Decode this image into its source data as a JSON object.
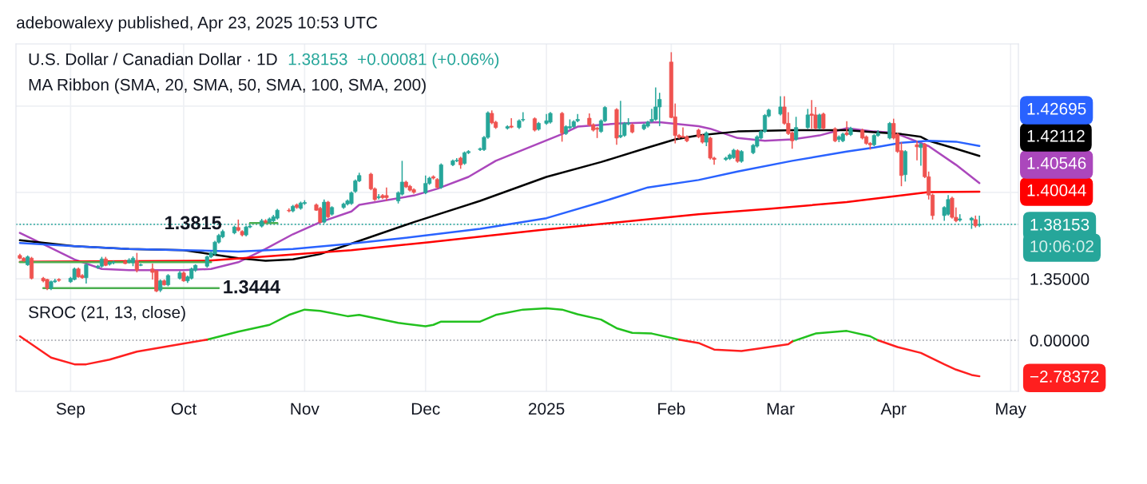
{
  "chart_data": [
    {
      "type": "candlestick",
      "title": "U.S. Dollar / Canadian Dollar · 1D",
      "subtitle": "MA Ribbon (SMA, 20, SMA, 50, SMA, 100, SMA, 200)",
      "x": [
        "2024-08-20",
        "2024-08-21",
        "2024-08-22",
        "2024-08-23",
        "2024-08-26",
        "2024-08-27",
        "2024-08-28",
        "2024-08-29",
        "2024-08-30",
        "2024-09-02",
        "2024-09-03",
        "2024-09-04",
        "2024-09-05",
        "2024-09-06",
        "2024-09-09",
        "2024-09-10",
        "2024-09-11",
        "2024-09-12",
        "2024-09-13",
        "2024-09-16",
        "2024-09-17",
        "2024-09-18",
        "2024-09-19",
        "2024-09-20",
        "2024-09-23",
        "2024-09-24",
        "2024-09-25",
        "2024-09-26",
        "2024-09-27",
        "2024-09-30",
        "2024-10-01",
        "2024-10-02",
        "2024-10-03",
        "2024-10-04",
        "2024-10-07",
        "2024-10-08",
        "2024-10-09",
        "2024-10-10",
        "2024-10-11",
        "2024-10-14",
        "2024-10-15",
        "2024-10-16",
        "2024-10-17",
        "2024-10-18",
        "2024-10-21",
        "2024-10-22",
        "2024-10-23",
        "2024-10-24",
        "2024-10-25",
        "2024-10-28",
        "2024-10-29",
        "2024-10-30",
        "2024-10-31",
        "2024-11-01",
        "2024-11-04",
        "2024-11-05",
        "2024-11-06",
        "2024-11-07",
        "2024-11-08",
        "2024-11-11",
        "2024-11-12",
        "2024-11-13",
        "2024-11-14",
        "2024-11-15",
        "2024-11-18",
        "2024-11-19",
        "2024-11-20",
        "2024-11-21",
        "2024-11-22",
        "2024-11-25",
        "2024-11-26",
        "2024-11-27",
        "2024-11-28",
        "2024-11-29",
        "2024-12-02",
        "2024-12-03",
        "2024-12-04",
        "2024-12-05",
        "2024-12-06",
        "2024-12-09",
        "2024-12-10",
        "2024-12-11",
        "2024-12-12",
        "2024-12-13",
        "2024-12-16",
        "2024-12-17",
        "2024-12-18",
        "2024-12-19",
        "2024-12-20",
        "2024-12-23",
        "2024-12-24",
        "2024-12-26",
        "2024-12-27",
        "2024-12-30",
        "2024-12-31",
        "2025-01-02",
        "2025-01-03",
        "2025-01-06",
        "2025-01-07",
        "2025-01-08",
        "2025-01-09",
        "2025-01-10",
        "2025-01-13",
        "2025-01-14",
        "2025-01-15",
        "2025-01-16",
        "2025-01-17",
        "2025-01-20",
        "2025-01-21",
        "2025-01-22",
        "2025-01-23",
        "2025-01-24",
        "2025-01-27",
        "2025-01-28",
        "2025-01-29",
        "2025-01-30",
        "2025-01-31",
        "2025-02-03",
        "2025-02-04",
        "2025-02-05",
        "2025-02-06",
        "2025-02-07",
        "2025-02-10",
        "2025-02-11",
        "2025-02-12",
        "2025-02-13",
        "2025-02-14",
        "2025-02-17",
        "2025-02-18",
        "2025-02-19",
        "2025-02-20",
        "2025-02-21",
        "2025-02-24",
        "2025-02-25",
        "2025-02-26",
        "2025-02-27",
        "2025-02-28",
        "2025-03-03",
        "2025-03-04",
        "2025-03-05",
        "2025-03-06",
        "2025-03-07",
        "2025-03-10",
        "2025-03-11",
        "2025-03-12",
        "2025-03-13",
        "2025-03-14",
        "2025-03-17",
        "2025-03-18",
        "2025-03-19",
        "2025-03-20",
        "2025-03-21",
        "2025-03-24",
        "2025-03-25",
        "2025-03-26",
        "2025-03-27",
        "2025-03-28",
        "2025-03-31",
        "2025-04-01",
        "2025-04-02",
        "2025-04-03",
        "2025-04-04",
        "2025-04-07",
        "2025-04-08",
        "2025-04-09",
        "2025-04-10",
        "2025-04-11",
        "2025-04-14",
        "2025-04-15",
        "2025-04-16",
        "2025-04-17",
        "2025-04-18",
        "2025-04-21",
        "2025-04-22",
        "2025-04-23"
      ],
      "ohlc": [
        [
          1.3635,
          1.3645,
          1.3612,
          1.3619
        ],
        [
          1.3619,
          1.3625,
          1.3598,
          1.3604
        ],
        [
          1.3581,
          1.3635,
          1.3575,
          1.3627
        ],
        [
          1.3619,
          1.3627,
          1.3496,
          1.3503
        ],
        [
          1.3503,
          1.3511,
          1.348,
          1.3488
        ],
        [
          1.3496,
          1.35,
          1.3434,
          1.3445
        ],
        [
          1.3445,
          1.349,
          1.3434,
          1.3483
        ],
        [
          1.3483,
          1.35,
          1.3476,
          1.3488
        ],
        [
          1.3496,
          1.3503,
          1.3483,
          1.3491
        ],
        [
          1.3483,
          1.3511,
          1.3476,
          1.3503
        ],
        [
          1.3496,
          1.3565,
          1.3491,
          1.3557
        ],
        [
          1.3557,
          1.3565,
          1.3506,
          1.3511
        ],
        [
          1.3519,
          1.3527,
          1.35,
          1.3506
        ],
        [
          1.3506,
          1.3588,
          1.3472,
          1.3581
        ],
        [
          1.3565,
          1.3581,
          1.3557,
          1.3573
        ],
        [
          1.3573,
          1.3627,
          1.3565,
          1.3615
        ],
        [
          1.3615,
          1.3627,
          1.3573,
          1.3578
        ],
        [
          1.3584,
          1.3599,
          1.3576,
          1.3593
        ],
        [
          1.3593,
          1.3604,
          1.3584,
          1.3596
        ],
        [
          1.3599,
          1.3611,
          1.3584,
          1.3588
        ],
        [
          1.3596,
          1.3619,
          1.3588,
          1.3608
        ],
        [
          1.3593,
          1.363,
          1.3573,
          1.3619
        ],
        [
          1.3604,
          1.365,
          1.3537,
          1.355
        ],
        [
          1.3578,
          1.3588,
          1.3573,
          1.3581
        ],
        [
          1.3557,
          1.3588,
          1.3496,
          1.3537
        ],
        [
          1.3547,
          1.355,
          1.3423,
          1.3429
        ],
        [
          1.3434,
          1.3496,
          1.3423,
          1.3488
        ],
        [
          1.3488,
          1.3496,
          1.346,
          1.3465
        ],
        [
          1.3465,
          1.3527,
          1.3457,
          1.3519
        ],
        [
          1.3503,
          1.3545,
          1.3496,
          1.3534
        ],
        [
          1.3534,
          1.3542,
          1.3483,
          1.3488
        ],
        [
          1.3488,
          1.3519,
          1.3476,
          1.3511
        ],
        [
          1.3503,
          1.3565,
          1.3496,
          1.3557
        ],
        [
          1.355,
          1.3584,
          1.354,
          1.3578
        ],
        [
          1.3573,
          1.3635,
          1.3565,
          1.3627
        ],
        [
          1.3627,
          1.366,
          1.3619,
          1.365
        ],
        [
          1.3643,
          1.372,
          1.3635,
          1.3712
        ],
        [
          1.3712,
          1.376,
          1.3704,
          1.3751
        ],
        [
          1.3743,
          1.3785,
          1.3735,
          1.3774
        ],
        [
          1.3766,
          1.3808,
          1.3758,
          1.38
        ],
        [
          1.3797,
          1.3843,
          1.3774,
          1.3781
        ],
        [
          1.3774,
          1.3781,
          1.3745,
          1.3754
        ],
        [
          1.3754,
          1.3808,
          1.3745,
          1.38
        ],
        [
          1.38,
          1.3815,
          1.3793,
          1.3805
        ],
        [
          1.3805,
          1.3847,
          1.3797,
          1.3836
        ],
        [
          1.3836,
          1.3845,
          1.382,
          1.3828
        ],
        [
          1.3828,
          1.3855,
          1.382,
          1.3847
        ],
        [
          1.3836,
          1.387,
          1.3828,
          1.3859
        ],
        [
          1.3851,
          1.3905,
          1.3843,
          1.3897
        ],
        [
          1.3897,
          1.3908,
          1.3885,
          1.3893
        ],
        [
          1.3893,
          1.3928,
          1.3885,
          1.392
        ],
        [
          1.3928,
          1.3936,
          1.3905,
          1.3913
        ],
        [
          1.3908,
          1.3947,
          1.39,
          1.3939
        ],
        [
          1.3936,
          1.3955,
          1.3928,
          1.3942
        ],
        [
          1.3928,
          1.3936,
          1.3893,
          1.3897
        ],
        [
          1.3908,
          1.3916,
          1.382,
          1.3828
        ],
        [
          1.3828,
          1.3959,
          1.382,
          1.3944
        ],
        [
          1.3944,
          1.3951,
          1.3851,
          1.3859
        ],
        [
          1.3874,
          1.392,
          1.3866,
          1.3913
        ],
        [
          1.3913,
          1.3941,
          1.3905,
          1.3933
        ],
        [
          1.3933,
          1.3959,
          1.3925,
          1.3951
        ],
        [
          1.3936,
          1.4006,
          1.3928,
          1.3998
        ],
        [
          1.4006,
          1.4075,
          1.3998,
          1.4067
        ],
        [
          1.4067,
          1.4114,
          1.406,
          1.4098
        ],
        [
          1.4106,
          1.4114,
          1.4013,
          1.4021
        ],
        [
          1.4021,
          1.4029,
          1.3951,
          1.3959
        ],
        [
          1.397,
          1.399,
          1.3959,
          1.3975
        ],
        [
          1.3982,
          1.399,
          1.3962,
          1.397
        ],
        [
          1.3982,
          1.4029,
          1.3951,
          1.397
        ],
        [
          1.3951,
          1.4006,
          1.3936,
          1.3998
        ],
        [
          1.399,
          1.4183,
          1.3982,
          1.406
        ],
        [
          1.406,
          1.4068,
          1.4025,
          1.4032
        ],
        [
          1.4036,
          1.4044,
          1.4005,
          1.4013
        ],
        [
          1.4016,
          1.4024,
          1.3993,
          1.4001
        ],
        [
          1.3998,
          1.4098,
          1.399,
          1.4052
        ],
        [
          1.4052,
          1.4091,
          1.4044,
          1.4083
        ],
        [
          1.4091,
          1.4099,
          1.4075,
          1.4083
        ],
        [
          1.4075,
          1.4083,
          1.4021,
          1.4029
        ],
        [
          1.4029,
          1.4168,
          1.4021,
          1.416
        ],
        [
          1.416,
          1.4191,
          1.4152,
          1.4183
        ],
        [
          1.4183,
          1.4199,
          1.4175,
          1.4186
        ],
        [
          1.4199,
          1.4207,
          1.4137,
          1.416
        ],
        [
          1.4168,
          1.4237,
          1.416,
          1.423
        ],
        [
          1.423,
          1.4245,
          1.4222,
          1.4237
        ],
        [
          1.4248,
          1.426,
          1.424,
          1.4253
        ],
        [
          1.4248,
          1.4327,
          1.424,
          1.4319
        ],
        [
          1.4319,
          1.4469,
          1.4311,
          1.4461
        ],
        [
          1.4458,
          1.4475,
          1.4395,
          1.4403
        ],
        [
          1.4407,
          1.4415,
          1.4368,
          1.4376
        ],
        [
          1.4372,
          1.4389,
          1.4364,
          1.4381
        ],
        [
          1.4384,
          1.443,
          1.4372,
          1.4378
        ],
        [
          1.4376,
          1.4423,
          1.4368,
          1.4415
        ],
        [
          1.442,
          1.4464,
          1.441,
          1.4423
        ],
        [
          1.4427,
          1.4435,
          1.4353,
          1.4361
        ],
        [
          1.4366,
          1.4408,
          1.4358,
          1.44
        ],
        [
          1.44,
          1.4454,
          1.4392,
          1.4415
        ],
        [
          1.4407,
          1.4466,
          1.4399,
          1.4458
        ],
        [
          1.4458,
          1.4466,
          1.4294,
          1.4345
        ],
        [
          1.4341,
          1.4389,
          1.4333,
          1.4381
        ],
        [
          1.4374,
          1.4423,
          1.4366,
          1.4381
        ],
        [
          1.4381,
          1.4418,
          1.4373,
          1.441
        ],
        [
          1.4415,
          1.4454,
          1.4407,
          1.4423
        ],
        [
          1.443,
          1.4458,
          1.4384,
          1.4392
        ],
        [
          1.4392,
          1.44,
          1.4353,
          1.4361
        ],
        [
          1.4372,
          1.438,
          1.4315,
          1.4366
        ],
        [
          1.4353,
          1.4423,
          1.4345,
          1.4415
        ],
        [
          1.4415,
          1.45,
          1.4407,
          1.4492
        ],
        [
          1.448,
          1.4488,
          1.4276,
          1.4315
        ],
        [
          1.4322,
          1.4531,
          1.4314,
          1.433
        ],
        [
          1.433,
          1.4408,
          1.4322,
          1.44
        ],
        [
          1.4397,
          1.443,
          1.4389,
          1.4403
        ],
        [
          1.4392,
          1.44,
          1.4342,
          1.435
        ],
        [
          1.4369,
          1.44,
          1.4361,
          1.4392
        ],
        [
          1.4384,
          1.4415,
          1.4376,
          1.4407
        ],
        [
          1.4412,
          1.4484,
          1.4404,
          1.4423
        ],
        [
          1.4423,
          1.4608,
          1.4415,
          1.4495
        ],
        [
          1.4495,
          1.4577,
          1.4384,
          1.4539
        ],
        [
          1.4755,
          1.4812,
          1.443,
          1.4434
        ],
        [
          1.4438,
          1.4515,
          1.4284,
          1.433
        ],
        [
          1.433,
          1.4338,
          1.4311,
          1.4319
        ],
        [
          1.4325,
          1.4377,
          1.4315,
          1.4319
        ],
        [
          1.4322,
          1.433,
          1.4291,
          1.4299
        ],
        [
          1.4361,
          1.4369,
          1.4314,
          1.4322
        ],
        [
          1.433,
          1.4338,
          1.4283,
          1.4291
        ],
        [
          1.4291,
          1.4353,
          1.4268,
          1.4345
        ],
        [
          1.4315,
          1.4322,
          1.4191,
          1.4199
        ],
        [
          1.4199,
          1.4207,
          1.416,
          1.4191
        ],
        [
          1.4191,
          1.4207,
          1.4183,
          1.4199
        ],
        [
          1.4196,
          1.4225,
          1.4188,
          1.4217
        ],
        [
          1.4202,
          1.4253,
          1.4194,
          1.4245
        ],
        [
          1.4242,
          1.425,
          1.4172,
          1.418
        ],
        [
          1.418,
          1.4245,
          1.4172,
          1.4237
        ],
        [
          1.423,
          1.4281,
          1.4222,
          1.4273
        ],
        [
          1.4268,
          1.433,
          1.426,
          1.4322
        ],
        [
          1.4315,
          1.4361,
          1.4307,
          1.4353
        ],
        [
          1.4353,
          1.4454,
          1.4345,
          1.4446
        ],
        [
          1.4443,
          1.4485,
          1.4435,
          1.4477
        ],
        [
          1.4454,
          1.4557,
          1.4446,
          1.4495
        ],
        [
          1.4495,
          1.4557,
          1.4392,
          1.44
        ],
        [
          1.44,
          1.4464,
          1.4333,
          1.4341
        ],
        [
          1.4345,
          1.4353,
          1.4253,
          1.4299
        ],
        [
          1.4307,
          1.4438,
          1.4299,
          1.4376
        ],
        [
          1.4376,
          1.4484,
          1.4368,
          1.4449
        ],
        [
          1.4454,
          1.4535,
          1.4369,
          1.4446
        ],
        [
          1.4449,
          1.4495,
          1.4364,
          1.4372
        ],
        [
          1.4372,
          1.4457,
          1.4364,
          1.4449
        ],
        [
          1.4454,
          1.4462,
          1.4364,
          1.4372
        ],
        [
          1.4369,
          1.4377,
          1.4291,
          1.4299
        ],
        [
          1.4307,
          1.433,
          1.4291,
          1.4322
        ],
        [
          1.4299,
          1.4346,
          1.4291,
          1.4338
        ],
        [
          1.4345,
          1.4412,
          1.4327,
          1.4335
        ],
        [
          1.4335,
          1.438,
          1.4327,
          1.4372
        ],
        [
          1.4361,
          1.4369,
          1.4307,
          1.4315
        ],
        [
          1.4322,
          1.433,
          1.4276,
          1.4284
        ],
        [
          1.4284,
          1.4292,
          1.4248,
          1.4276
        ],
        [
          1.4276,
          1.4338,
          1.4268,
          1.433
        ],
        [
          1.433,
          1.436,
          1.4322,
          1.4345
        ],
        [
          1.4315,
          1.4408,
          1.4307,
          1.44
        ],
        [
          1.44,
          1.4427,
          1.4307,
          1.4315
        ],
        [
          1.4338,
          1.4346,
          1.4229,
          1.4237
        ],
        [
          1.4242,
          1.4291,
          1.4036,
          1.4098
        ],
        [
          1.4103,
          1.4245,
          1.4063,
          1.4237
        ],
        [
          1.4276,
          1.4299,
          1.4186,
          1.4264
        ],
        [
          1.426,
          1.4287,
          1.4155,
          1.4279
        ],
        [
          1.4279,
          1.4287,
          1.4083,
          1.4091
        ],
        [
          1.4091,
          1.4121,
          1.3959,
          1.3985
        ],
        [
          1.3985,
          1.3993,
          1.3843,
          1.3866
        ],
        [
          1.3866,
          1.392,
          1.3836,
          1.3913
        ],
        [
          1.3874,
          1.3985,
          1.3866,
          1.3959
        ],
        [
          1.3967,
          1.3975,
          1.3848,
          1.3856
        ],
        [
          1.3856,
          1.3913,
          1.3828,
          1.3836
        ],
        [
          1.384,
          1.3874,
          1.3831,
          1.3847
        ],
        [
          1.384,
          1.3858,
          1.3789,
          1.3851
        ],
        [
          1.3843,
          1.3866,
          1.3797,
          1.3807
        ],
        [
          1.381,
          1.3866,
          1.38,
          1.38153
        ]
      ],
      "series": [
        {
          "type": "line",
          "color": "#ab47bc",
          "x": [
            "2024-08-20",
            "2024-08-27",
            "2024-09-03",
            "2024-09-10",
            "2024-09-17",
            "2024-09-24",
            "2024-10-01",
            "2024-10-08",
            "2024-10-15",
            "2024-10-22",
            "2024-10-29",
            "2024-11-05",
            "2024-11-13",
            "2024-11-15",
            "2024-11-29",
            "2024-12-05",
            "2024-12-13",
            "2024-12-20",
            "2025-01-06",
            "2025-01-10",
            "2025-01-21",
            "2025-01-31",
            "2025-02-10",
            "2025-02-13",
            "2025-02-20",
            "2025-02-27",
            "2025-03-06",
            "2025-03-13",
            "2025-03-20",
            "2025-03-27",
            "2025-04-01",
            "2025-04-03",
            "2025-04-10",
            "2025-04-17",
            "2025-04-23"
          ],
          "values": [
            1.3766,
            1.3689,
            1.3612,
            1.3557,
            1.355,
            1.355,
            1.355,
            1.3557,
            1.3596,
            1.3673,
            1.3758,
            1.3828,
            1.389,
            1.3928,
            1.3982,
            1.4021,
            1.409,
            1.4183,
            1.4338,
            1.4381,
            1.44,
            1.4407,
            1.4384,
            1.4369,
            1.4315,
            1.4299,
            1.4307,
            1.433,
            1.4372,
            1.4353,
            1.4345,
            1.433,
            1.4268,
            1.416,
            1.40546
          ]
        },
        {
          "type": "line",
          "color": "#000000",
          "x": [
            "2024-08-20",
            "2024-09-03",
            "2024-09-17",
            "2024-10-01",
            "2024-10-15",
            "2024-10-22",
            "2024-10-29",
            "2024-11-05",
            "2024-11-13",
            "2024-11-29",
            "2024-12-16",
            "2025-01-02",
            "2025-01-16",
            "2025-01-28",
            "2025-02-04",
            "2025-02-10",
            "2025-02-20",
            "2025-03-06",
            "2025-03-20",
            "2025-03-27",
            "2025-04-03",
            "2025-04-08",
            "2025-04-10",
            "2025-04-17",
            "2025-04-23"
          ],
          "values": [
            1.3723,
            1.3689,
            1.3673,
            1.3666,
            1.3619,
            1.3604,
            1.3612,
            1.3643,
            1.3704,
            1.3828,
            1.3951,
            1.409,
            1.4176,
            1.426,
            1.4307,
            1.433,
            1.4353,
            1.4361,
            1.4361,
            1.4349,
            1.4338,
            1.4322,
            1.4299,
            1.4253,
            1.42112
          ]
        },
        {
          "type": "line",
          "color": "#2962ff",
          "x": [
            "2024-08-20",
            "2024-09-03",
            "2024-09-17",
            "2024-10-01",
            "2024-10-15",
            "2024-10-29",
            "2024-11-12",
            "2024-11-26",
            "2024-12-16",
            "2025-01-02",
            "2025-01-16",
            "2025-01-28",
            "2025-02-10",
            "2025-02-20",
            "2025-03-06",
            "2025-03-20",
            "2025-03-27",
            "2025-04-03",
            "2025-04-10",
            "2025-04-17",
            "2025-04-23"
          ],
          "values": [
            1.3707,
            1.3689,
            1.3673,
            1.3666,
            1.3658,
            1.3673,
            1.3701,
            1.3735,
            1.3789,
            1.3851,
            1.3944,
            1.4029,
            1.4072,
            1.4121,
            1.4183,
            1.4237,
            1.426,
            1.4288,
            1.4299,
            1.4294,
            1.42695
          ]
        },
        {
          "type": "line",
          "color": "#ff0000",
          "x": [
            "2024-08-20",
            "2024-10-07",
            "2024-11-13",
            "2024-12-03",
            "2024-12-31",
            "2025-02-10",
            "2025-02-28",
            "2025-03-20",
            "2025-04-10",
            "2025-04-23"
          ],
          "values": [
            1.3599,
            1.3604,
            1.3666,
            1.3712,
            1.3781,
            1.3874,
            1.3905,
            1.3944,
            1.4002,
            1.40044
          ]
        },
        {
          "type": "line",
          "color": "#4caf50",
          "x": [
            "2024-08-20",
            "2024-10-08"
          ],
          "values": [
            1.3596,
            1.3596
          ]
        },
        {
          "type": "line",
          "color": "#4caf50",
          "x": [
            "2024-08-26",
            "2024-10-10"
          ],
          "values": [
            1.3446,
            1.3446
          ]
        },
        {
          "type": "line",
          "color": "#4caf50",
          "x": [
            "2024-10-18",
            "2024-10-25"
          ],
          "values": [
            1.3823,
            1.3823
          ]
        }
      ],
      "xlim": [
        "2024-08-19",
        "2025-05-03"
      ],
      "xticks": [
        {
          "value": "2024-09-02",
          "label": null
        },
        {
          "value": "2024-10-01",
          "label": null
        },
        {
          "value": "2024-11-01",
          "label": null
        },
        {
          "value": "2024-12-02",
          "label": null
        },
        {
          "value": "2025-01-02",
          "label": null
        },
        {
          "value": "2025-02-03",
          "label": null
        },
        {
          "value": "2025-03-03",
          "label": null
        },
        {
          "value": "2025-04-01",
          "label": null
        },
        {
          "value": "2025-05-01",
          "label": null
        }
      ],
      "ylim": [
        1.338,
        1.486
      ],
      "yticks": [
        {
          "value": 1.35,
          "label": "1.35000"
        },
        {
          "value": 1.38153,
          "label": "1.38153"
        },
        {
          "value": 1.4,
          "label": null
        },
        {
          "value": 1.45,
          "label": null
        }
      ],
      "tick_labels": "y",
      "grid": true,
      "ref_lines": [
        {
          "axis": "y",
          "value": 1.38153,
          "color": "#26a69a",
          "line_style": "dotted"
        }
      ],
      "annotations": [
        "adebowalexy published, Apr 23, 2025 10:53 UTC",
        "1.38153  +0.00081 (+0.06%)",
        "10:06:02",
        {
          "text": "1.3815",
          "x": "2024-09-26",
          "y": 1.3815
        },
        {
          "text": "1.3444",
          "x": "2024-10-11",
          "y": 1.3444
        },
        "1.40546",
        "1.42112",
        "1.42695",
        "1.40044"
      ]
    },
    {
      "type": "line",
      "title": "SROC (21, 13, close)",
      "x": [
        "2024-08-20",
        "2024-08-23",
        "2024-08-28",
        "2024-09-03",
        "2024-09-06",
        "2024-09-12",
        "2024-09-19",
        "2024-09-30",
        "2024-10-07",
        "2024-10-15",
        "2024-10-23",
        "2024-10-28",
        "2024-11-01",
        "2024-11-05",
        "2024-11-12",
        "2024-11-15",
        "2024-11-25",
        "2024-12-02",
        "2024-12-04",
        "2024-12-06",
        "2024-12-16",
        "2024-12-20",
        "2024-12-27",
        "2025-01-02",
        "2025-01-06",
        "2025-01-10",
        "2025-01-16",
        "2025-01-20",
        "2025-01-24",
        "2025-01-29",
        "2025-02-05",
        "2025-02-10",
        "2025-02-14",
        "2025-02-21",
        "2025-02-26",
        "2025-03-05",
        "2025-03-06",
        "2025-03-12",
        "2025-03-20",
        "2025-03-26",
        "2025-03-28",
        "2025-04-02",
        "2025-04-08",
        "2025-04-14",
        "2025-04-17",
        "2025-04-21",
        "2025-04-23"
      ],
      "series": [
        {
          "color": "#22c11e",
          "values": [
            null,
            null,
            null,
            null,
            null,
            null,
            null,
            null,
            0.05,
            0.67,
            1.19,
            1.96,
            2.37,
            2.27,
            1.86,
            1.96,
            1.34,
            1.08,
            1.19,
            1.44,
            1.44,
            1.96,
            2.37,
            2.47,
            2.37,
            2.01,
            1.6,
            0.93,
            0.57,
            0.52,
            0.05,
            null,
            null,
            null,
            null,
            null,
            -0.1,
            0.52,
            0.72,
            0.31,
            0.0,
            null,
            null,
            null,
            null,
            null,
            null
          ]
        },
        {
          "color": "#ff1f1f",
          "values": [
            0.31,
            -0.31,
            -1.34,
            -1.86,
            -1.86,
            -1.5,
            -0.88,
            -0.31,
            0.05,
            null,
            null,
            null,
            null,
            null,
            null,
            null,
            null,
            null,
            null,
            null,
            null,
            null,
            null,
            null,
            null,
            null,
            null,
            null,
            null,
            null,
            0.05,
            -0.21,
            -0.72,
            -0.83,
            -0.62,
            -0.31,
            -0.1,
            null,
            null,
            null,
            0.0,
            -0.52,
            -0.98,
            -1.86,
            -2.27,
            -2.68,
            -2.78372
          ]
        }
      ],
      "xlim": [
        "2024-08-19",
        "2025-05-03"
      ],
      "xticks": [
        {
          "value": "2024-09-02",
          "label": "Sep"
        },
        {
          "value": "2024-10-01",
          "label": "Oct"
        },
        {
          "value": "2024-11-01",
          "label": "Nov"
        },
        {
          "value": "2024-12-02",
          "label": "Dec"
        },
        {
          "value": "2025-01-02",
          "label": "2025"
        },
        {
          "value": "2025-02-03",
          "label": "Feb"
        },
        {
          "value": "2025-03-03",
          "label": "Mar"
        },
        {
          "value": "2025-04-01",
          "label": "Apr"
        },
        {
          "value": "2025-05-01",
          "label": "May"
        }
      ],
      "ylim": [
        -3.95,
        3.15
      ],
      "yticks": [
        {
          "value": 0,
          "label": "0.00000"
        },
        {
          "value": -2.78372,
          "label": "−2.78372"
        }
      ],
      "grid": "x",
      "ref_lines": [
        {
          "axis": "y",
          "value": 0,
          "color": "#9598a1",
          "line_style": "dotted"
        }
      ]
    }
  ]
}
